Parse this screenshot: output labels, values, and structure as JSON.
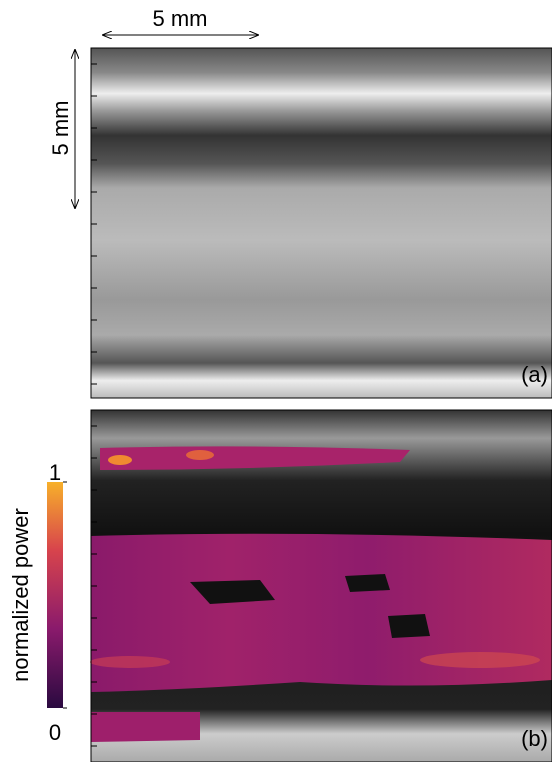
{
  "scale_bars": {
    "horizontal": "5 mm",
    "vertical": "5 mm"
  },
  "panels": {
    "a": "(a)",
    "b": "(b)"
  },
  "colorbar": {
    "label": "normalized power",
    "range": [
      0,
      1
    ],
    "ticks": [
      0,
      1
    ]
  }
}
